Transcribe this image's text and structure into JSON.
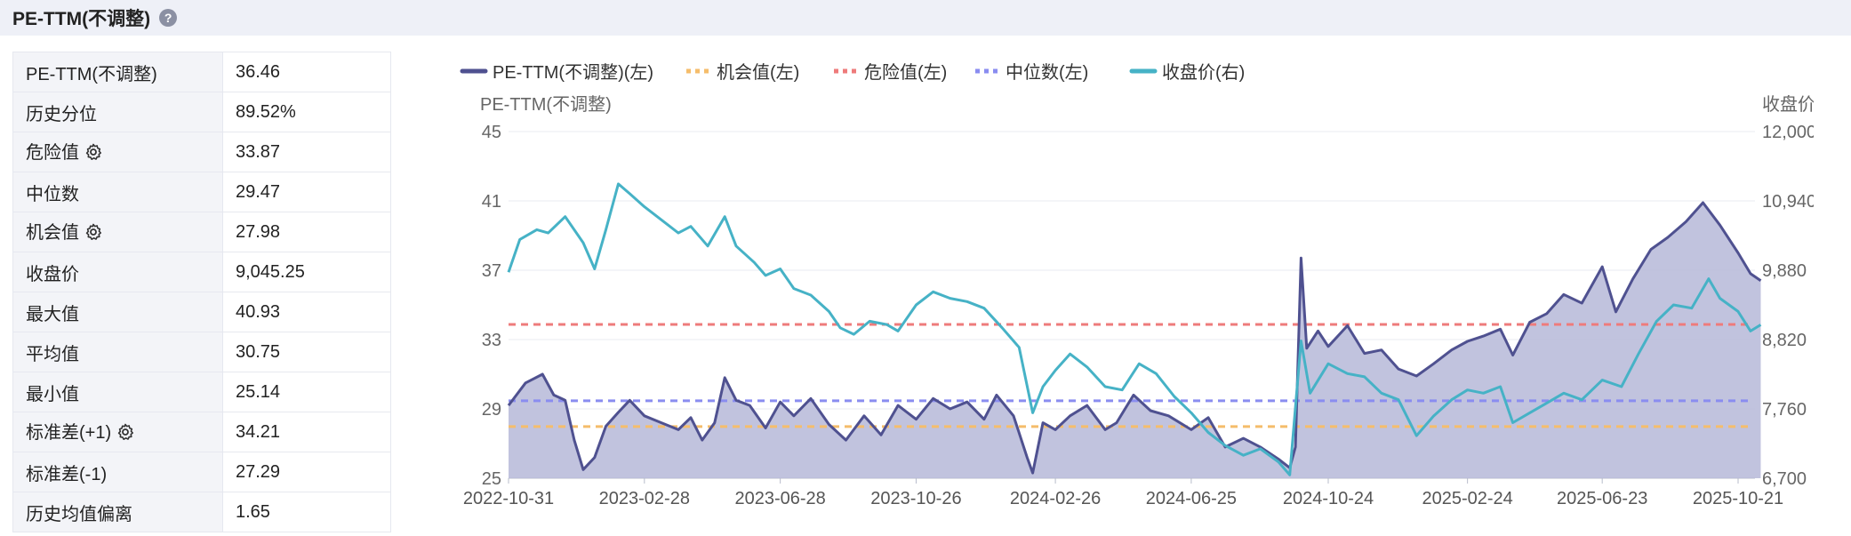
{
  "header": {
    "title": "PE-TTM(不调整)",
    "help_icon": "question-circle-icon"
  },
  "stats": [
    {
      "label": "PE-TTM(不调整)",
      "value": "36.46",
      "gear": false
    },
    {
      "label": "历史分位",
      "value": "89.52%",
      "gear": false
    },
    {
      "label": "危险值",
      "value": "33.87",
      "gear": true
    },
    {
      "label": "中位数",
      "value": "29.47",
      "gear": false
    },
    {
      "label": "机会值",
      "value": "27.98",
      "gear": true
    },
    {
      "label": "收盘价",
      "value": "9,045.25",
      "gear": false
    },
    {
      "label": "最大值",
      "value": "40.93",
      "gear": false
    },
    {
      "label": "平均值",
      "value": "30.75",
      "gear": false
    },
    {
      "label": "最小值",
      "value": "25.14",
      "gear": false
    },
    {
      "label": "标准差(+1)",
      "value": "34.21",
      "gear": true
    },
    {
      "label": "标准差(-1)",
      "value": "27.29",
      "gear": false
    },
    {
      "label": "历史均值偏离",
      "value": "1.65",
      "gear": false
    }
  ],
  "chart_data": {
    "type": "line",
    "legend": [
      {
        "name": "PE-TTM(不调整)(左)",
        "color": "#4f5190",
        "style": "solid"
      },
      {
        "name": "机会值(左)",
        "color": "#f5bd6b",
        "style": "dotted"
      },
      {
        "name": "危险值(左)",
        "color": "#ee7b7b",
        "style": "dotted"
      },
      {
        "name": "中位数(左)",
        "color": "#8a8df0",
        "style": "dotted"
      },
      {
        "name": "收盘价(右)",
        "color": "#46b2c6",
        "style": "solid"
      }
    ],
    "legend_position": "top",
    "ylabel_left": "PE-TTM(不调整)",
    "ylabel_right": "收盘价",
    "ylim_left": [
      25,
      45
    ],
    "ylim_right": [
      6700,
      12000
    ],
    "yticks_left": [
      "45",
      "41",
      "37",
      "33",
      "29",
      "25"
    ],
    "yticks_right": [
      "12,000",
      "10,940",
      "9,880",
      "8,820",
      "7,760",
      "6,700"
    ],
    "x_ticks": [
      "2022-10-31",
      "2023-02-28",
      "2023-06-28",
      "2023-10-26",
      "2024-02-26",
      "2024-06-25",
      "2024-10-24",
      "2025-02-24",
      "2025-06-23",
      "2025-10-21"
    ],
    "grid": true,
    "reference_lines": {
      "danger": 33.87,
      "median": 29.47,
      "opportunity": 27.98
    },
    "pe_series": [
      [
        "2022-10-31",
        29.2
      ],
      [
        "2022-11-15",
        30.5
      ],
      [
        "2022-11-30",
        31.0
      ],
      [
        "2022-12-10",
        29.8
      ],
      [
        "2022-12-20",
        29.5
      ],
      [
        "2022-12-28",
        27.2
      ],
      [
        "2023-01-05",
        25.5
      ],
      [
        "2023-01-15",
        26.2
      ],
      [
        "2023-01-25",
        28.0
      ],
      [
        "2023-02-05",
        28.8
      ],
      [
        "2023-02-15",
        29.5
      ],
      [
        "2023-02-28",
        28.6
      ],
      [
        "2023-03-15",
        28.2
      ],
      [
        "2023-03-30",
        27.8
      ],
      [
        "2023-04-10",
        28.5
      ],
      [
        "2023-04-20",
        27.2
      ],
      [
        "2023-05-01",
        28.2
      ],
      [
        "2023-05-10",
        30.8
      ],
      [
        "2023-05-20",
        29.5
      ],
      [
        "2023-06-01",
        29.2
      ],
      [
        "2023-06-15",
        27.9
      ],
      [
        "2023-06-28",
        29.4
      ],
      [
        "2023-07-10",
        28.6
      ],
      [
        "2023-07-25",
        29.6
      ],
      [
        "2023-08-10",
        28.1
      ],
      [
        "2023-08-25",
        27.2
      ],
      [
        "2023-09-10",
        28.6
      ],
      [
        "2023-09-25",
        27.5
      ],
      [
        "2023-10-10",
        29.2
      ],
      [
        "2023-10-26",
        28.4
      ],
      [
        "2023-11-10",
        29.6
      ],
      [
        "2023-11-25",
        29.0
      ],
      [
        "2023-12-10",
        29.4
      ],
      [
        "2023-12-25",
        28.4
      ],
      [
        "2024-01-05",
        29.8
      ],
      [
        "2024-01-20",
        28.6
      ],
      [
        "2024-02-01",
        26.2
      ],
      [
        "2024-02-06",
        25.3
      ],
      [
        "2024-02-15",
        28.2
      ],
      [
        "2024-02-26",
        27.8
      ],
      [
        "2024-03-10",
        28.6
      ],
      [
        "2024-03-25",
        29.2
      ],
      [
        "2024-04-10",
        27.8
      ],
      [
        "2024-04-20",
        28.2
      ],
      [
        "2024-05-05",
        29.8
      ],
      [
        "2024-05-20",
        28.9
      ],
      [
        "2024-06-05",
        28.6
      ],
      [
        "2024-06-25",
        27.8
      ],
      [
        "2024-07-10",
        28.5
      ],
      [
        "2024-07-25",
        26.8
      ],
      [
        "2024-08-10",
        27.3
      ],
      [
        "2024-08-25",
        26.8
      ],
      [
        "2024-09-10",
        26.1
      ],
      [
        "2024-09-20",
        25.6
      ],
      [
        "2024-09-25",
        26.8
      ],
      [
        "2024-09-30",
        37.7
      ],
      [
        "2024-10-05",
        32.5
      ],
      [
        "2024-10-15",
        33.5
      ],
      [
        "2024-10-24",
        32.6
      ],
      [
        "2024-11-10",
        33.8
      ],
      [
        "2024-11-25",
        32.2
      ],
      [
        "2024-12-10",
        32.4
      ],
      [
        "2024-12-25",
        31.3
      ],
      [
        "2025-01-10",
        30.9
      ],
      [
        "2025-01-25",
        31.6
      ],
      [
        "2025-02-10",
        32.4
      ],
      [
        "2025-02-24",
        32.9
      ],
      [
        "2025-03-10",
        33.2
      ],
      [
        "2025-03-25",
        33.6
      ],
      [
        "2025-04-05",
        32.1
      ],
      [
        "2025-04-20",
        34.0
      ],
      [
        "2025-05-05",
        34.5
      ],
      [
        "2025-05-20",
        35.6
      ],
      [
        "2025-06-05",
        35.1
      ],
      [
        "2025-06-23",
        37.2
      ],
      [
        "2025-07-05",
        34.6
      ],
      [
        "2025-07-20",
        36.5
      ],
      [
        "2025-08-05",
        38.2
      ],
      [
        "2025-08-20",
        38.9
      ],
      [
        "2025-09-05",
        39.8
      ],
      [
        "2025-09-20",
        40.9
      ],
      [
        "2025-10-05",
        39.6
      ],
      [
        "2025-10-21",
        38.0
      ],
      [
        "2025-11-01",
        36.8
      ],
      [
        "2025-11-10",
        36.4
      ]
    ],
    "close_series": [
      [
        "2022-10-31",
        9850
      ],
      [
        "2022-11-10",
        10350
      ],
      [
        "2022-11-25",
        10500
      ],
      [
        "2022-12-05",
        10450
      ],
      [
        "2022-12-20",
        10700
      ],
      [
        "2023-01-05",
        10300
      ],
      [
        "2023-01-15",
        9900
      ],
      [
        "2023-01-25",
        10500
      ],
      [
        "2023-02-05",
        11200
      ],
      [
        "2023-02-15",
        11050
      ],
      [
        "2023-02-28",
        10850
      ],
      [
        "2023-03-15",
        10650
      ],
      [
        "2023-03-30",
        10450
      ],
      [
        "2023-04-10",
        10550
      ],
      [
        "2023-04-25",
        10250
      ],
      [
        "2023-05-10",
        10700
      ],
      [
        "2023-05-20",
        10250
      ],
      [
        "2023-06-05",
        10000
      ],
      [
        "2023-06-15",
        9800
      ],
      [
        "2023-06-28",
        9900
      ],
      [
        "2023-07-10",
        9600
      ],
      [
        "2023-07-25",
        9500
      ],
      [
        "2023-08-10",
        9250
      ],
      [
        "2023-08-20",
        9000
      ],
      [
        "2023-09-01",
        8900
      ],
      [
        "2023-09-15",
        9100
      ],
      [
        "2023-09-30",
        9050
      ],
      [
        "2023-10-10",
        8950
      ],
      [
        "2023-10-26",
        9350
      ],
      [
        "2023-11-10",
        9550
      ],
      [
        "2023-11-25",
        9450
      ],
      [
        "2023-12-10",
        9400
      ],
      [
        "2023-12-25",
        9300
      ],
      [
        "2024-01-10",
        9000
      ],
      [
        "2024-01-25",
        8700
      ],
      [
        "2024-02-06",
        7700
      ],
      [
        "2024-02-15",
        8100
      ],
      [
        "2024-02-26",
        8350
      ],
      [
        "2024-03-10",
        8600
      ],
      [
        "2024-03-25",
        8400
      ],
      [
        "2024-04-10",
        8100
      ],
      [
        "2024-04-25",
        8050
      ],
      [
        "2024-05-10",
        8450
      ],
      [
        "2024-05-25",
        8300
      ],
      [
        "2024-06-10",
        7950
      ],
      [
        "2024-06-25",
        7700
      ],
      [
        "2024-07-10",
        7400
      ],
      [
        "2024-07-25",
        7200
      ],
      [
        "2024-08-10",
        7050
      ],
      [
        "2024-08-25",
        7150
      ],
      [
        "2024-09-10",
        6950
      ],
      [
        "2024-09-20",
        6750
      ],
      [
        "2024-09-30",
        8800
      ],
      [
        "2024-10-08",
        8000
      ],
      [
        "2024-10-24",
        8450
      ],
      [
        "2024-11-10",
        8300
      ],
      [
        "2024-11-25",
        8250
      ],
      [
        "2024-12-10",
        8000
      ],
      [
        "2024-12-25",
        7900
      ],
      [
        "2025-01-10",
        7350
      ],
      [
        "2025-01-25",
        7650
      ],
      [
        "2025-02-10",
        7900
      ],
      [
        "2025-02-24",
        8050
      ],
      [
        "2025-03-10",
        8000
      ],
      [
        "2025-03-25",
        8100
      ],
      [
        "2025-04-05",
        7550
      ],
      [
        "2025-04-20",
        7700
      ],
      [
        "2025-05-05",
        7850
      ],
      [
        "2025-05-20",
        8000
      ],
      [
        "2025-06-05",
        7900
      ],
      [
        "2025-06-23",
        8200
      ],
      [
        "2025-07-10",
        8100
      ],
      [
        "2025-07-25",
        8600
      ],
      [
        "2025-08-10",
        9100
      ],
      [
        "2025-08-25",
        9350
      ],
      [
        "2025-09-10",
        9300
      ],
      [
        "2025-09-25",
        9750
      ],
      [
        "2025-10-05",
        9450
      ],
      [
        "2025-10-21",
        9250
      ],
      [
        "2025-11-01",
        8950
      ],
      [
        "2025-11-10",
        9045
      ]
    ]
  }
}
